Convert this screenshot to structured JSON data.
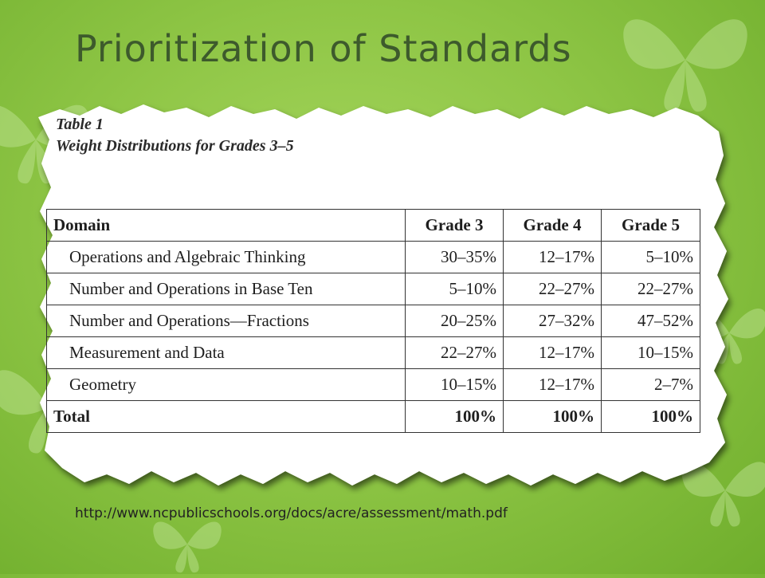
{
  "slide": {
    "title": "Prioritization of Standards",
    "source_url": "http://www.ncpublicschools.org/docs/acre/assessment/math.pdf"
  },
  "document": {
    "table_label": "Table 1",
    "table_title": "Weight Distributions for Grades 3–5",
    "headers": [
      "Domain",
      "Grade 3",
      "Grade 4",
      "Grade 5"
    ],
    "rows": [
      {
        "domain": "Operations and Algebraic Thinking",
        "grade3": "30–35%",
        "grade4": "12–17%",
        "grade5": "5–10%"
      },
      {
        "domain": "Number and Operations in Base Ten",
        "grade3": "5–10%",
        "grade4": "22–27%",
        "grade5": "22–27%"
      },
      {
        "domain": "Number and Operations—Fractions",
        "grade3": "20–25%",
        "grade4": "27–32%",
        "grade5": "47–52%"
      },
      {
        "domain": "Measurement and Data",
        "grade3": "22–27%",
        "grade4": "12–17%",
        "grade5": "10–15%"
      },
      {
        "domain": "Geometry",
        "grade3": "10–15%",
        "grade4": "12–17%",
        "grade5": "2–7%"
      }
    ],
    "total": {
      "label": "Total",
      "grade3": "100%",
      "grade4": "100%",
      "grade5": "100%"
    }
  },
  "colors": {
    "background": "#8fc646",
    "title": "#3d5a2c",
    "paper": "#ffffff"
  }
}
